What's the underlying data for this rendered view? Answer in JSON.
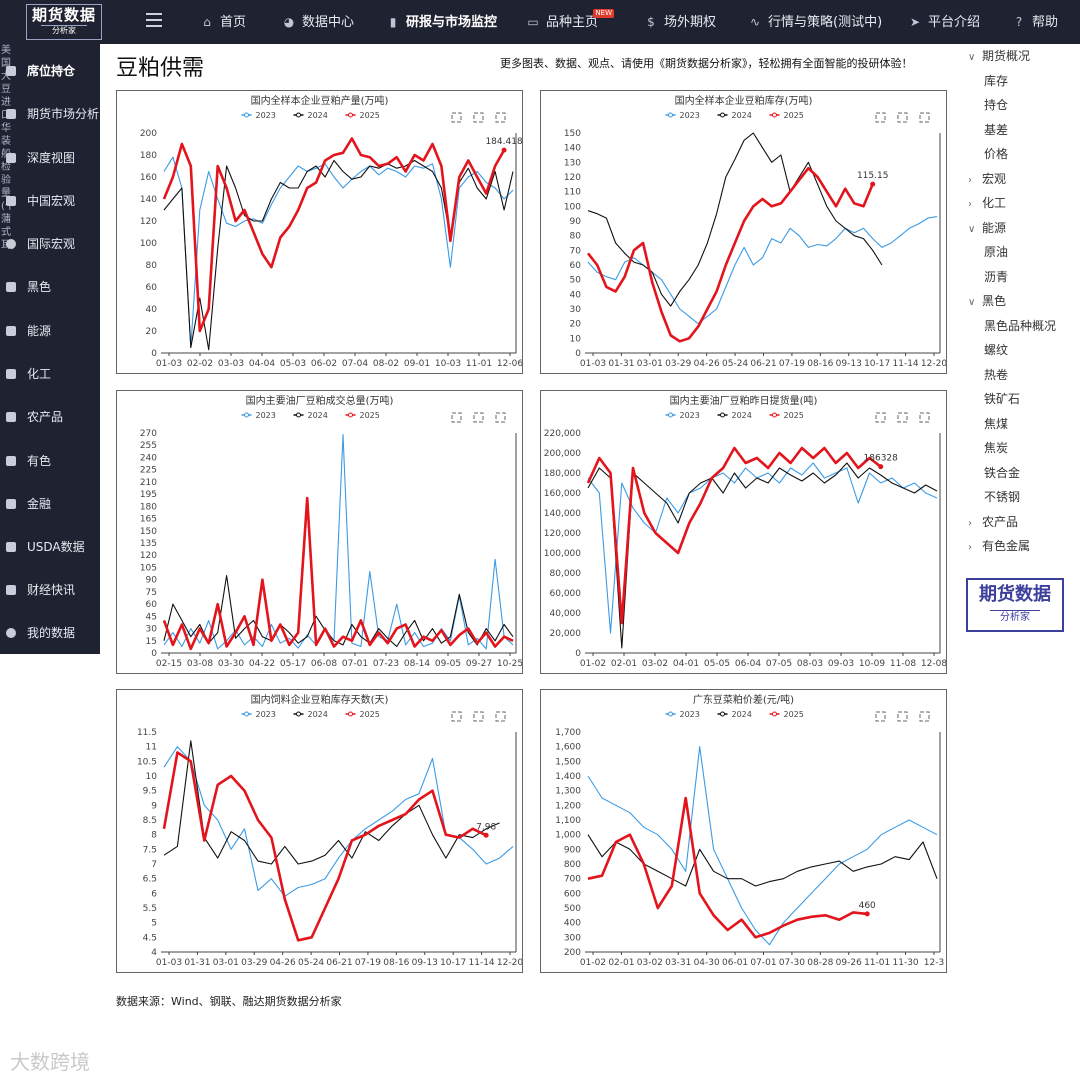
{
  "topnav": {
    "logo_main": "期货数据",
    "logo_sub": "分析家",
    "items": [
      {
        "label": "首页",
        "icon": "home-icon",
        "glyph": "⌂"
      },
      {
        "label": "数据中心",
        "icon": "pie-icon",
        "glyph": "◕"
      },
      {
        "label": "研报与市场监控",
        "icon": "bar-chart-icon",
        "glyph": "▮"
      },
      {
        "label": "品种主页",
        "icon": "book-icon",
        "glyph": "▭",
        "badge": "NEW"
      },
      {
        "label": "场外期权",
        "icon": "dollar-icon",
        "glyph": "$"
      },
      {
        "label": "行情与策略(测试中)",
        "icon": "line-chart-icon",
        "glyph": "∿"
      },
      {
        "label": "平台介绍",
        "icon": "send-icon",
        "glyph": "➤"
      },
      {
        "label": "帮助",
        "icon": "help-icon",
        "glyph": "?"
      }
    ]
  },
  "sidebar": {
    "vertical_text": "美国大豆进口华装船检验量(千蒲式耳)",
    "items": [
      {
        "label": "席位持仓"
      },
      {
        "label": "期货市场分析"
      },
      {
        "label": "深度视图"
      },
      {
        "label": "中国宏观"
      },
      {
        "label": "国际宏观"
      },
      {
        "label": "黑色"
      },
      {
        "label": "能源"
      },
      {
        "label": "化工"
      },
      {
        "label": "农产品"
      },
      {
        "label": "有色"
      },
      {
        "label": "金融"
      },
      {
        "label": "USDA数据"
      },
      {
        "label": "财经快讯"
      },
      {
        "label": "我的数据"
      }
    ]
  },
  "page": {
    "title": "豆粕供需",
    "promo": "更多图表、数据、观点、请使用《期货数据分析家》，轻松拥有全面智能的投研体验！",
    "source": "数据来源：Wind、钢联、融达期货数据分析家",
    "watermark": "大数跨境"
  },
  "colors": {
    "y2023": "#3b9be6",
    "y2024": "#111111",
    "y2025": "#e3141c"
  },
  "tree": {
    "items": [
      {
        "label": "期货概况",
        "caret": "down",
        "level": 0
      },
      {
        "label": "库存",
        "level": 1
      },
      {
        "label": "持仓",
        "level": 1
      },
      {
        "label": "基差",
        "level": 1
      },
      {
        "label": "价格",
        "level": 1
      },
      {
        "label": "宏观",
        "caret": "right",
        "level": 0
      },
      {
        "label": "化工",
        "caret": "right",
        "level": 0
      },
      {
        "label": "能源",
        "caret": "down",
        "level": 0
      },
      {
        "label": "原油",
        "level": 1
      },
      {
        "label": "沥青",
        "level": 1
      },
      {
        "label": "黑色",
        "caret": "down",
        "level": 0
      },
      {
        "label": "黑色品种概况",
        "level": 1
      },
      {
        "label": "螺纹",
        "level": 1
      },
      {
        "label": "热卷",
        "level": 1
      },
      {
        "label": "铁矿石",
        "level": 1
      },
      {
        "label": "焦煤",
        "level": 1
      },
      {
        "label": "焦炭",
        "level": 1
      },
      {
        "label": "铁合金",
        "level": 1
      },
      {
        "label": "不锈钢",
        "level": 1
      },
      {
        "label": "农产品",
        "caret": "right",
        "level": 0
      },
      {
        "label": "有色金属",
        "caret": "right",
        "level": 0
      }
    ],
    "brand_main": "期货数据",
    "brand_sub": "分析家"
  },
  "chart_data": [
    {
      "type": "line",
      "title": "国内全样本企业豆粕产量(万吨)",
      "xticks": [
        "01-03",
        "02-02",
        "03-03",
        "04-04",
        "05-03",
        "06-02",
        "07-04",
        "08-02",
        "09-01",
        "10-03",
        "11-01",
        "12-06"
      ],
      "yticks": [
        0,
        20,
        40,
        60,
        80,
        100,
        120,
        140,
        160,
        180,
        200
      ],
      "ylim": [
        0,
        200
      ],
      "last_label": "184.418",
      "series": [
        {
          "name": "2023",
          "values": [
            165,
            178,
            150,
            5,
            130,
            165,
            140,
            118,
            115,
            120,
            122,
            118,
            135,
            150,
            160,
            170,
            165,
            168,
            172,
            160,
            150,
            158,
            165,
            170,
            162,
            168,
            165,
            160,
            170,
            168,
            172,
            140,
            78,
            150,
            160,
            165,
            155,
            150,
            140,
            148
          ]
        },
        {
          "name": "2024",
          "values": [
            130,
            140,
            150,
            5,
            50,
            3,
            95,
            170,
            150,
            125,
            120,
            120,
            140,
            155,
            150,
            150,
            165,
            170,
            160,
            175,
            165,
            158,
            160,
            170,
            168,
            172,
            168,
            170,
            175,
            170,
            165,
            150,
            105,
            155,
            168,
            150,
            140,
            165,
            130,
            165
          ]
        },
        {
          "name": "2025",
          "values": [
            140,
            160,
            190,
            170,
            20,
            40,
            170,
            150,
            120,
            130,
            110,
            90,
            78,
            105,
            115,
            130,
            150,
            155,
            175,
            180,
            182,
            195,
            180,
            178,
            170,
            172,
            178,
            165,
            180,
            175,
            190,
            170,
            102,
            160,
            175,
            160,
            145,
            170,
            184.418
          ]
        }
      ]
    },
    {
      "type": "line",
      "title": "国内全样本企业豆粕库存(万吨)",
      "xticks": [
        "01-03",
        "01-31",
        "03-01",
        "03-29",
        "04-26",
        "05-24",
        "06-21",
        "07-19",
        "08-16",
        "09-13",
        "10-17",
        "11-14",
        "12-20"
      ],
      "yticks": [
        0,
        10,
        20,
        30,
        40,
        50,
        60,
        70,
        80,
        90,
        100,
        110,
        120,
        130,
        140,
        150
      ],
      "ylim": [
        0,
        150
      ],
      "last_label": "115.15",
      "series": [
        {
          "name": "2023",
          "values": [
            62,
            55,
            52,
            50,
            62,
            65,
            60,
            55,
            50,
            40,
            30,
            25,
            20,
            25,
            30,
            45,
            60,
            72,
            60,
            65,
            78,
            75,
            85,
            80,
            72,
            74,
            73,
            78,
            85,
            82,
            85,
            78,
            72,
            75,
            80,
            85,
            88,
            92,
            93
          ]
        },
        {
          "name": "2024",
          "values": [
            97,
            95,
            92,
            75,
            68,
            62,
            60,
            55,
            40,
            32,
            42,
            50,
            60,
            75,
            95,
            120,
            132,
            145,
            150,
            140,
            130,
            135,
            110,
            120,
            130,
            115,
            100,
            90,
            85,
            80,
            78,
            70,
            60
          ]
        },
        {
          "name": "2025",
          "values": [
            68,
            60,
            45,
            42,
            52,
            70,
            75,
            48,
            28,
            12,
            8,
            10,
            18,
            30,
            42,
            60,
            75,
            90,
            100,
            105,
            100,
            102,
            110,
            118,
            126,
            120,
            110,
            100,
            112,
            102,
            100,
            115.15
          ]
        }
      ]
    },
    {
      "type": "line",
      "title": "国内主要油厂豆粕成交总量(万吨)",
      "xticks": [
        "02-15",
        "03-08",
        "03-30",
        "04-22",
        "05-17",
        "06-08",
        "07-01",
        "07-23",
        "08-14",
        "09-05",
        "09-27",
        "10-25"
      ],
      "yticks": [
        0,
        15,
        30,
        45,
        60,
        75,
        90,
        105,
        120,
        135,
        150,
        165,
        180,
        195,
        210,
        225,
        240,
        255,
        270
      ],
      "ylim": [
        0,
        270
      ],
      "last_label": "",
      "series": [
        {
          "name": "2023",
          "values": [
            10,
            25,
            8,
            30,
            12,
            40,
            5,
            15,
            28,
            10,
            20,
            8,
            35,
            12,
            18,
            6,
            22,
            10,
            30,
            15,
            268,
            12,
            8,
            100,
            20,
            15,
            60,
            10,
            25,
            8,
            12,
            30,
            15,
            70,
            10,
            18,
            5,
            115,
            20,
            10
          ]
        },
        {
          "name": "2024",
          "values": [
            15,
            60,
            40,
            20,
            35,
            12,
            25,
            95,
            18,
            30,
            40,
            20,
            15,
            35,
            25,
            12,
            20,
            45,
            28,
            15,
            10,
            35,
            20,
            12,
            30,
            18,
            8,
            25,
            40,
            15,
            30,
            12,
            20,
            72,
            25,
            10,
            30,
            15,
            35,
            20
          ]
        },
        {
          "name": "2025",
          "values": [
            40,
            10,
            35,
            5,
            30,
            12,
            60,
            8,
            25,
            45,
            10,
            90,
            15,
            35,
            10,
            25,
            190,
            10,
            30,
            8,
            20,
            15,
            40,
            10,
            25,
            12,
            30,
            35,
            8,
            20,
            15,
            28,
            10,
            22,
            30,
            12,
            25,
            8,
            20,
            15
          ]
        }
      ]
    },
    {
      "type": "line",
      "title": "国内主要油厂豆粕昨日提货量(吨)",
      "xticks": [
        "01-02",
        "02-01",
        "03-02",
        "04-01",
        "05-05",
        "06-04",
        "07-05",
        "08-03",
        "09-03",
        "10-09",
        "11-08",
        "12-08"
      ],
      "yticks": [
        0,
        20000,
        40000,
        60000,
        80000,
        100000,
        120000,
        140000,
        160000,
        180000,
        200000,
        220000
      ],
      "ylim": [
        0,
        220000
      ],
      "last_label": "186328",
      "series": [
        {
          "name": "2023",
          "values": [
            175000,
            160000,
            20000,
            170000,
            145000,
            130000,
            120000,
            155000,
            140000,
            160000,
            165000,
            175000,
            180000,
            170000,
            185000,
            175000,
            180000,
            170000,
            185000,
            178000,
            190000,
            175000,
            180000,
            185000,
            150000,
            180000,
            170000,
            175000,
            165000,
            170000,
            160000,
            155000
          ]
        },
        {
          "name": "2024",
          "values": [
            165000,
            185000,
            175000,
            5000,
            180000,
            170000,
            160000,
            150000,
            130000,
            160000,
            170000,
            175000,
            160000,
            180000,
            165000,
            175000,
            170000,
            185000,
            178000,
            172000,
            180000,
            170000,
            178000,
            190000,
            175000,
            185000,
            178000,
            170000,
            165000,
            160000,
            168000,
            162000
          ]
        },
        {
          "name": "2025",
          "values": [
            170000,
            195000,
            180000,
            30000,
            185000,
            140000,
            120000,
            110000,
            100000,
            130000,
            150000,
            175000,
            185000,
            205000,
            190000,
            195000,
            185000,
            200000,
            190000,
            205000,
            195000,
            205000,
            190000,
            200000,
            185000,
            195000,
            186328
          ]
        }
      ]
    },
    {
      "type": "line",
      "title": "国内饲料企业豆粕库存天数(天)",
      "xticks": [
        "01-03",
        "01-31",
        "03-01",
        "03-29",
        "04-26",
        "05-24",
        "06-21",
        "07-19",
        "08-16",
        "09-13",
        "10-17",
        "11-14",
        "12-20"
      ],
      "yticks": [
        4,
        4.5,
        5,
        5.5,
        6,
        6.5,
        7,
        7.5,
        8,
        8.5,
        9,
        9.5,
        10,
        10.5,
        11,
        11.5
      ],
      "ylim": [
        4,
        11.5
      ],
      "last_label": "7.98",
      "series": [
        {
          "name": "2023",
          "values": [
            10.3,
            11,
            10.5,
            9,
            8.5,
            7.5,
            8.2,
            6.1,
            6.5,
            5.9,
            6.2,
            6.3,
            6.5,
            7.2,
            7.8,
            8.2,
            8.5,
            8.8,
            9.2,
            9.4,
            10.6,
            8,
            7.9,
            7.5,
            7,
            7.2,
            7.6
          ]
        },
        {
          "name": "2024",
          "values": [
            7.3,
            7.6,
            11.2,
            7.9,
            7.2,
            8.1,
            7.8,
            7.1,
            7,
            7.6,
            7,
            7.1,
            7.3,
            7.8,
            7.2,
            8.1,
            7.8,
            8.3,
            8.7,
            9,
            8,
            7.2,
            8,
            7.9,
            8.2,
            8.4
          ]
        },
        {
          "name": "2025",
          "values": [
            8.2,
            10.8,
            10.5,
            7.8,
            9.7,
            10,
            9.5,
            8.5,
            7.9,
            5.8,
            4.4,
            4.5,
            5.5,
            6.5,
            7.8,
            8,
            8.3,
            8.5,
            8.7,
            9.2,
            9.5,
            8,
            7.9,
            8.2,
            7.98
          ]
        }
      ]
    },
    {
      "type": "line",
      "title": "广东豆菜粕价差(元/吨)",
      "xticks": [
        "01-02",
        "02-01",
        "03-02",
        "03-31",
        "04-30",
        "06-01",
        "07-01",
        "07-30",
        "08-28",
        "09-26",
        "11-01",
        "11-30",
        "12-3"
      ],
      "yticks": [
        200,
        300,
        400,
        500,
        600,
        700,
        800,
        900,
        1000,
        1100,
        1200,
        1300,
        1400,
        1500,
        1600,
        1700
      ],
      "ylim": [
        200,
        1700
      ],
      "last_label": "460",
      "series": [
        {
          "name": "2023",
          "values": [
            1400,
            1250,
            1200,
            1150,
            1050,
            1000,
            900,
            750,
            1600,
            900,
            700,
            500,
            350,
            250,
            400,
            500,
            600,
            700,
            800,
            850,
            900,
            1000,
            1050,
            1100,
            1050,
            1000
          ]
        },
        {
          "name": "2024",
          "values": [
            1000,
            850,
            950,
            900,
            800,
            750,
            700,
            650,
            900,
            750,
            700,
            700,
            650,
            680,
            700,
            750,
            780,
            800,
            820,
            750,
            780,
            800,
            850,
            830,
            950,
            700
          ]
        },
        {
          "name": "2025",
          "values": [
            700,
            720,
            950,
            1000,
            800,
            500,
            650,
            1250,
            600,
            450,
            350,
            420,
            300,
            330,
            380,
            420,
            440,
            450,
            420,
            470,
            460
          ]
        }
      ]
    }
  ]
}
